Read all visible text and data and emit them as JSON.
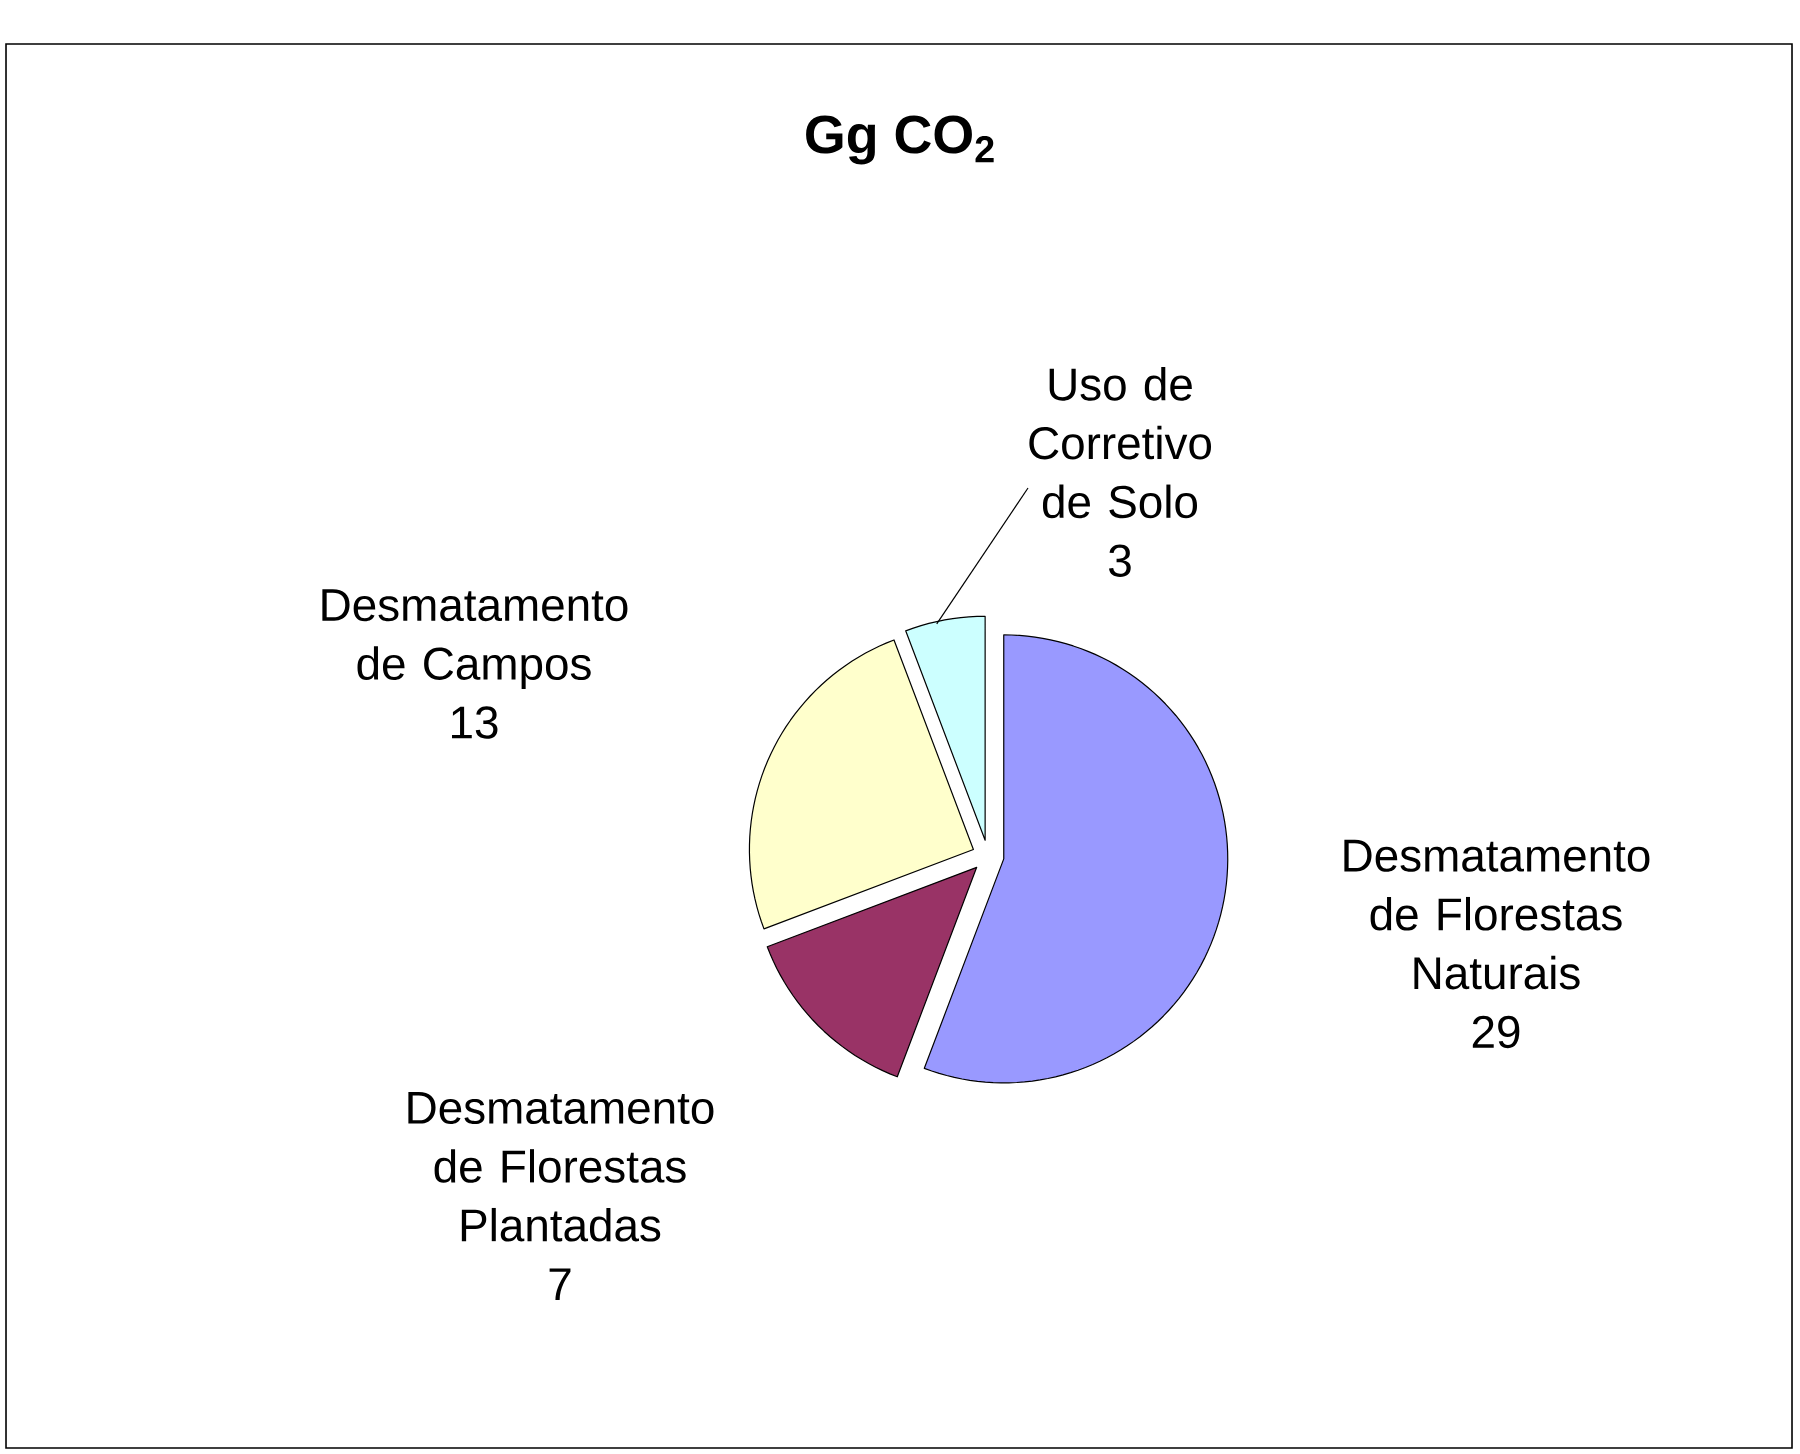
{
  "chart_data": {
    "type": "pie",
    "title": "Gg CO$_{2}$",
    "categories": [
      "Desmatamento de Florestas Naturais",
      "Desmatamento de Florestas Plantadas",
      "Desmatamento de Campos",
      "Uso de Corretivo de Solo"
    ],
    "values": [
      29,
      7,
      13,
      3
    ],
    "colors": [
      "#9999ff",
      "#993366",
      "#ffffcc",
      "#ccffff"
    ],
    "data_labels": true,
    "legend": false
  }
}
